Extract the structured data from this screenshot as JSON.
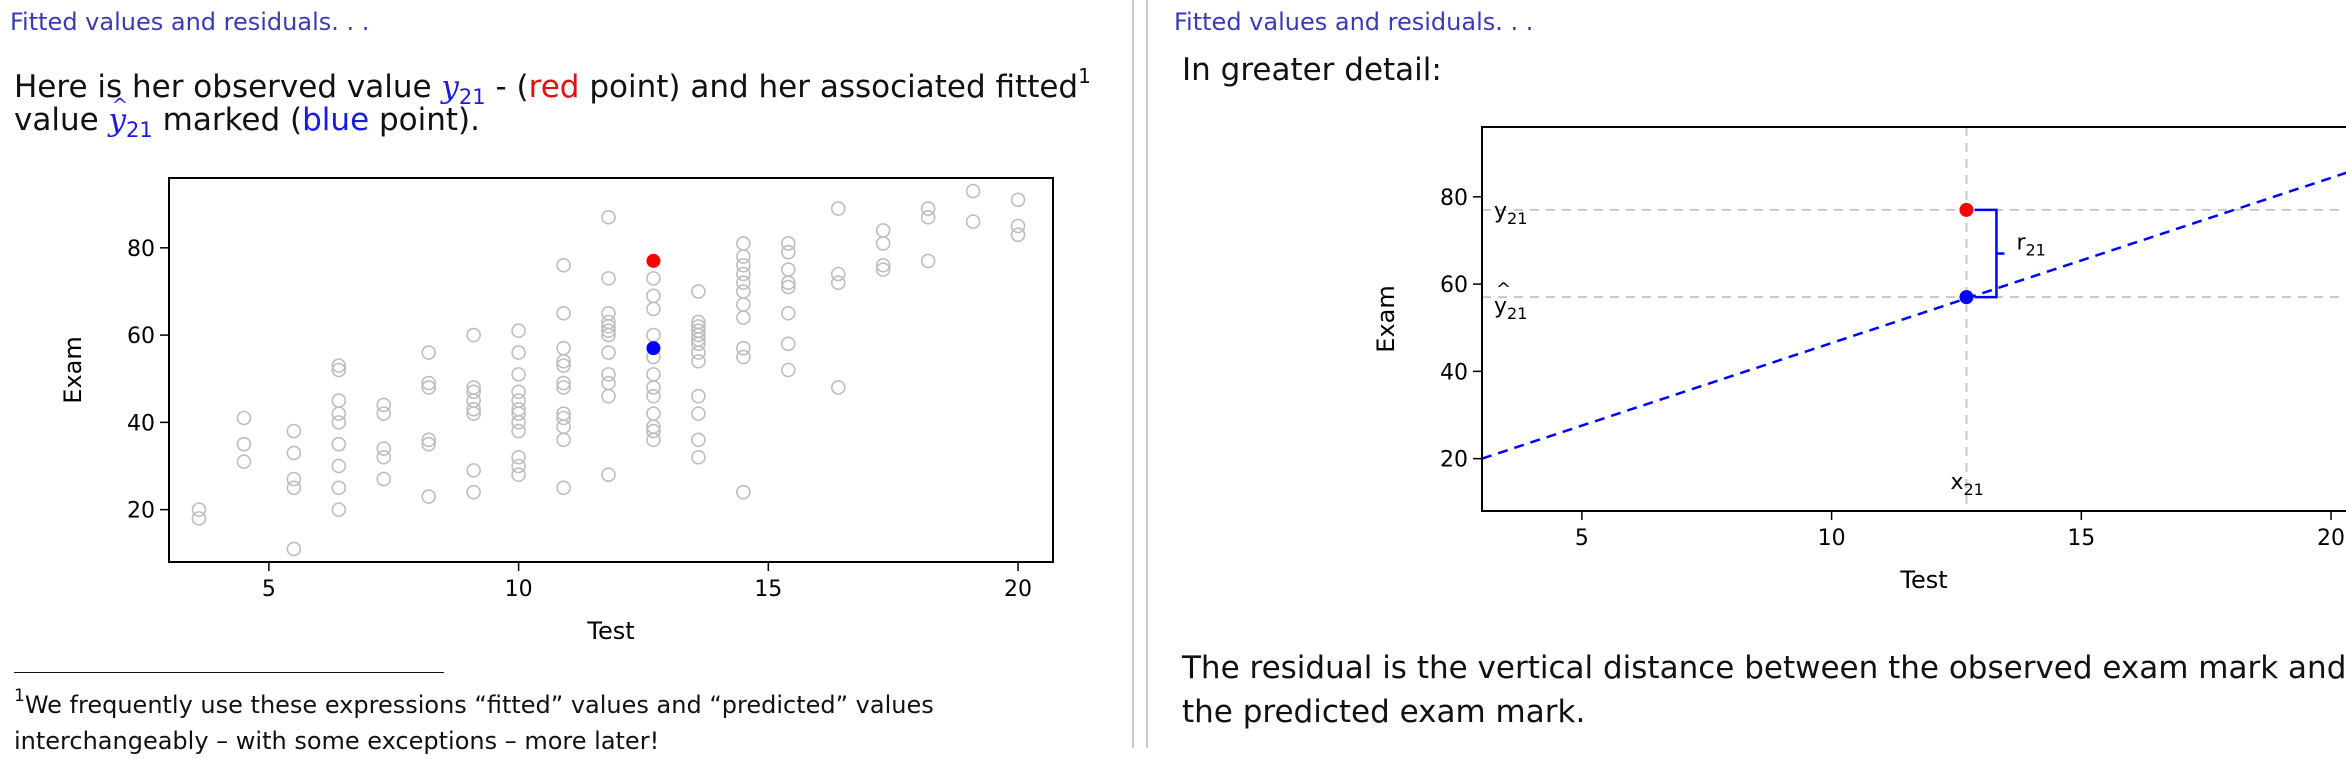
{
  "left": {
    "title": "Fitted values and residuals. . .",
    "intro_part1": "Here is her observed value ",
    "y_symbol": "y",
    "y_subscript": "21",
    "intro_part2": " - (",
    "red_word": "red",
    "intro_part3": " point) and her associated fitted",
    "footnote_mark": "1",
    "line2_part1": "value ",
    "yhat_symbol": "y",
    "yhat_subscript": "21",
    "line2_part2": " marked (",
    "blue_word": "blue",
    "line2_part3": " point).",
    "footnote_number": "1",
    "footnote_line1": "We frequently use these expressions “fitted” values and “predicted” values",
    "footnote_line2": "interchangeably – with some exceptions – more later!"
  },
  "right": {
    "title": "Fitted values and residuals. . .",
    "intro": "In greater detail:",
    "conclusion_line1": "The residual is the vertical distance between the observed exam mark and",
    "conclusion_line2": "the predicted exam mark."
  },
  "chart_data": [
    {
      "type": "scatter",
      "title": "",
      "xlabel": "Test",
      "ylabel": "Exam",
      "xlim": [
        3,
        20.7
      ],
      "ylim": [
        8,
        96
      ],
      "xticks": [
        5,
        10,
        15,
        20
      ],
      "yticks": [
        20,
        40,
        60,
        80
      ],
      "grid": false,
      "points": [
        [
          3.6,
          20
        ],
        [
          3.6,
          18
        ],
        [
          4.5,
          41
        ],
        [
          4.5,
          35
        ],
        [
          4.5,
          31
        ],
        [
          5.5,
          38
        ],
        [
          5.5,
          33
        ],
        [
          5.5,
          27
        ],
        [
          5.5,
          25
        ],
        [
          5.5,
          11
        ],
        [
          6.4,
          53
        ],
        [
          6.4,
          52
        ],
        [
          6.4,
          45
        ],
        [
          6.4,
          42
        ],
        [
          6.4,
          40
        ],
        [
          6.4,
          35
        ],
        [
          6.4,
          30
        ],
        [
          6.4,
          25
        ],
        [
          6.4,
          20
        ],
        [
          7.3,
          44
        ],
        [
          7.3,
          42
        ],
        [
          7.3,
          34
        ],
        [
          7.3,
          32
        ],
        [
          7.3,
          27
        ],
        [
          8.2,
          56
        ],
        [
          8.2,
          49
        ],
        [
          8.2,
          48
        ],
        [
          8.2,
          36
        ],
        [
          8.2,
          35
        ],
        [
          8.2,
          23
        ],
        [
          9.1,
          60
        ],
        [
          9.1,
          48
        ],
        [
          9.1,
          47
        ],
        [
          9.1,
          45
        ],
        [
          9.1,
          43
        ],
        [
          9.1,
          42
        ],
        [
          9.1,
          29
        ],
        [
          9.1,
          24
        ],
        [
          10,
          61
        ],
        [
          10,
          56
        ],
        [
          10,
          51
        ],
        [
          10,
          47
        ],
        [
          10,
          45
        ],
        [
          10,
          43
        ],
        [
          10,
          42
        ],
        [
          10,
          40
        ],
        [
          10,
          38
        ],
        [
          10,
          32
        ],
        [
          10,
          30
        ],
        [
          10,
          28
        ],
        [
          10.9,
          76
        ],
        [
          10.9,
          65
        ],
        [
          10.9,
          57
        ],
        [
          10.9,
          54
        ],
        [
          10.9,
          53
        ],
        [
          10.9,
          49
        ],
        [
          10.9,
          48
        ],
        [
          10.9,
          42
        ],
        [
          10.9,
          41
        ],
        [
          10.9,
          39
        ],
        [
          10.9,
          36
        ],
        [
          10.9,
          25
        ],
        [
          11.8,
          87
        ],
        [
          11.8,
          73
        ],
        [
          11.8,
          65
        ],
        [
          11.8,
          63
        ],
        [
          11.8,
          62
        ],
        [
          11.8,
          61
        ],
        [
          11.8,
          60
        ],
        [
          11.8,
          56
        ],
        [
          11.8,
          51
        ],
        [
          11.8,
          49
        ],
        [
          11.8,
          46
        ],
        [
          11.8,
          28
        ],
        [
          12.7,
          73
        ],
        [
          12.7,
          69
        ],
        [
          12.7,
          66
        ],
        [
          12.7,
          60
        ],
        [
          12.7,
          55
        ],
        [
          12.7,
          51
        ],
        [
          12.7,
          48
        ],
        [
          12.7,
          46
        ],
        [
          12.7,
          42
        ],
        [
          12.7,
          39
        ],
        [
          12.7,
          38
        ],
        [
          12.7,
          36
        ],
        [
          13.6,
          70
        ],
        [
          13.6,
          63
        ],
        [
          13.6,
          62
        ],
        [
          13.6,
          61
        ],
        [
          13.6,
          60
        ],
        [
          13.6,
          59
        ],
        [
          13.6,
          58
        ],
        [
          13.6,
          56
        ],
        [
          13.6,
          54
        ],
        [
          13.6,
          46
        ],
        [
          13.6,
          42
        ],
        [
          13.6,
          36
        ],
        [
          13.6,
          32
        ],
        [
          14.5,
          81
        ],
        [
          14.5,
          78
        ],
        [
          14.5,
          76
        ],
        [
          14.5,
          74
        ],
        [
          14.5,
          72
        ],
        [
          14.5,
          70
        ],
        [
          14.5,
          67
        ],
        [
          14.5,
          64
        ],
        [
          14.5,
          57
        ],
        [
          14.5,
          55
        ],
        [
          14.5,
          24
        ],
        [
          15.4,
          81
        ],
        [
          15.4,
          79
        ],
        [
          15.4,
          75
        ],
        [
          15.4,
          72
        ],
        [
          15.4,
          71
        ],
        [
          15.4,
          65
        ],
        [
          15.4,
          58
        ],
        [
          15.4,
          52
        ],
        [
          16.4,
          89
        ],
        [
          16.4,
          74
        ],
        [
          16.4,
          72
        ],
        [
          16.4,
          48
        ],
        [
          17.3,
          84
        ],
        [
          17.3,
          81
        ],
        [
          17.3,
          76
        ],
        [
          17.3,
          75
        ],
        [
          18.2,
          89
        ],
        [
          18.2,
          87
        ],
        [
          18.2,
          77
        ],
        [
          19.1,
          93
        ],
        [
          19.1,
          86
        ],
        [
          20,
          91
        ],
        [
          20,
          85
        ],
        [
          20,
          83
        ]
      ],
      "highlighted": [
        {
          "label": "observed",
          "x": 12.7,
          "y": 77,
          "color": "#ff0000"
        },
        {
          "label": "fitted",
          "x": 12.7,
          "y": 57,
          "color": "#0000ff"
        }
      ],
      "point_color": "#bdbdbd"
    },
    {
      "type": "line",
      "title": "",
      "xlabel": "Test",
      "ylabel": "Exam",
      "xlim": [
        3,
        20.7
      ],
      "ylim": [
        8,
        96
      ],
      "xticks": [
        5,
        10,
        15,
        20
      ],
      "yticks": [
        20,
        40,
        60,
        80
      ],
      "fitted_line": {
        "x": [
          3,
          20.7
        ],
        "y": [
          20,
          87
        ],
        "color": "#0000ff",
        "style": "dashed"
      },
      "reference_lines": {
        "x": 12.7,
        "y_observed": 77,
        "y_fitted": 57,
        "color": "#c8c8c8",
        "style": "dashed"
      },
      "observed": {
        "x": 12.7,
        "y": 77,
        "color": "#ff0000"
      },
      "fitted": {
        "x": 12.7,
        "y": 57,
        "color": "#0000ff"
      },
      "labels": {
        "observed_symbol": "y",
        "observed_sub": "21",
        "fitted_symbol": "y",
        "fitted_sub": "21",
        "fitted_hat": "^",
        "residual_symbol": "r",
        "residual_sub": "21",
        "x_symbol": "x",
        "x_sub": "21"
      }
    }
  ]
}
